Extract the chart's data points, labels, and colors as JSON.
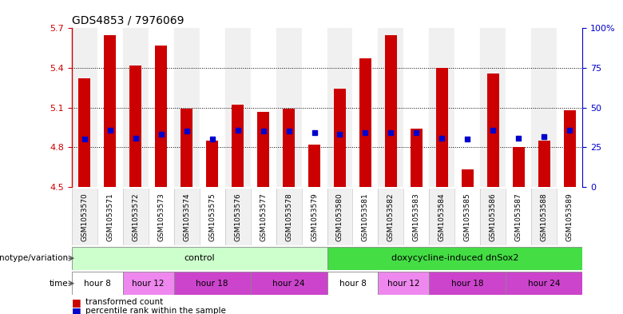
{
  "title": "GDS4853 / 7976069",
  "samples": [
    "GSM1053570",
    "GSM1053571",
    "GSM1053572",
    "GSM1053573",
    "GSM1053574",
    "GSM1053575",
    "GSM1053576",
    "GSM1053577",
    "GSM1053578",
    "GSM1053579",
    "GSM1053580",
    "GSM1053581",
    "GSM1053582",
    "GSM1053583",
    "GSM1053584",
    "GSM1053585",
    "GSM1053586",
    "GSM1053587",
    "GSM1053588",
    "GSM1053589"
  ],
  "bar_values": [
    5.32,
    5.65,
    5.42,
    5.57,
    5.09,
    4.85,
    5.12,
    5.07,
    5.09,
    4.82,
    5.24,
    5.47,
    5.65,
    4.94,
    5.4,
    4.63,
    5.36,
    4.8,
    4.85,
    5.08
  ],
  "percentile_values": [
    4.86,
    4.93,
    4.87,
    4.9,
    4.92,
    4.86,
    4.93,
    4.92,
    4.92,
    4.91,
    4.9,
    4.91,
    4.91,
    4.91,
    4.87,
    4.86,
    4.93,
    4.87,
    4.88,
    4.93
  ],
  "ymin": 4.5,
  "ymax": 5.7,
  "y2min": 0,
  "y2max": 100,
  "yticks_left": [
    4.5,
    4.8,
    5.1,
    5.4,
    5.7
  ],
  "yticks_right": [
    0,
    25,
    50,
    75,
    100
  ],
  "bar_color": "#cc0000",
  "percentile_color": "#0000cc",
  "bar_bottom": 4.5,
  "genotype_groups": [
    {
      "label": "control",
      "start": 0,
      "end": 9,
      "color": "#ccffcc"
    },
    {
      "label": "doxycycline-induced dnSox2",
      "start": 10,
      "end": 19,
      "color": "#44dd44"
    }
  ],
  "time_groups": [
    {
      "label": "hour 8",
      "start": 0,
      "end": 1,
      "color": "#ffffff"
    },
    {
      "label": "hour 12",
      "start": 2,
      "end": 3,
      "color": "#ee88ee"
    },
    {
      "label": "hour 18",
      "start": 4,
      "end": 6,
      "color": "#cc44cc"
    },
    {
      "label": "hour 24",
      "start": 7,
      "end": 9,
      "color": "#cc44cc"
    },
    {
      "label": "hour 8",
      "start": 10,
      "end": 11,
      "color": "#ffffff"
    },
    {
      "label": "hour 12",
      "start": 12,
      "end": 13,
      "color": "#ee88ee"
    },
    {
      "label": "hour 18",
      "start": 14,
      "end": 16,
      "color": "#cc44cc"
    },
    {
      "label": "hour 24",
      "start": 17,
      "end": 19,
      "color": "#cc44cc"
    }
  ],
  "legend_items": [
    {
      "label": "transformed count",
      "color": "#cc0000"
    },
    {
      "label": "percentile rank within the sample",
      "color": "#0000cc"
    }
  ],
  "title_color": "#000000",
  "left_axis_color": "#cc0000",
  "right_axis_color": "#0000cc",
  "grid_color": "#000000",
  "col_bg_even": "#f0f0f0",
  "col_bg_odd": "#ffffff"
}
